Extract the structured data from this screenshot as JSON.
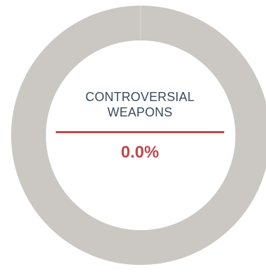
{
  "colors": {
    "ring": "#cbc8c4",
    "ring_seam": "#dcd9d5",
    "inner": "#ffffff",
    "label": "#3a4a5c",
    "accent": "#c4474d"
  },
  "chart_data": {
    "type": "pie",
    "donut": true,
    "categories": [
      "CONTROVERSIAL WEAPONS"
    ],
    "values": [
      0.0
    ],
    "value_label": "0.0%",
    "center_label_lines": [
      "CONTROVERSIAL",
      "WEAPONS"
    ]
  }
}
